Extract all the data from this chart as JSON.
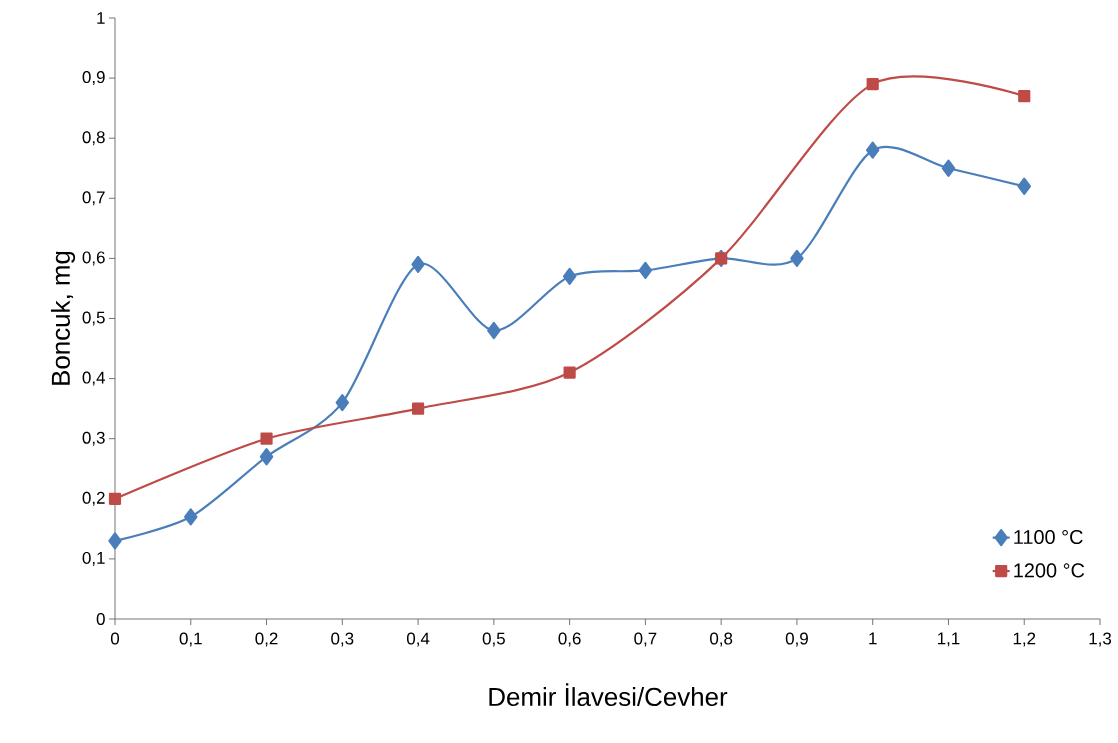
{
  "chart_data": {
    "type": "line",
    "xlabel": "Demir İlavesi/Cevher",
    "ylabel": "Boncuk, mg",
    "xlim": [
      0,
      1.3
    ],
    "ylim": [
      0,
      1
    ],
    "xticks": [
      0,
      {
        "value": 0.1,
        "label": "0,1"
      },
      {
        "value": 0.2,
        "label": "0,2"
      },
      {
        "value": 0.3,
        "label": "0,3"
      },
      {
        "value": 0.4,
        "label": "0,4"
      },
      {
        "value": 0.5,
        "label": "0,5"
      },
      {
        "value": 0.6,
        "label": "0,6"
      },
      {
        "value": 0.7,
        "label": "0,7"
      },
      {
        "value": 0.8,
        "label": "0,8"
      },
      {
        "value": 0.9,
        "label": "0,9"
      },
      1,
      {
        "value": 1.1,
        "label": "1,1"
      },
      {
        "value": 1.2,
        "label": "1,2"
      },
      {
        "value": 1.3,
        "label": "1,3"
      }
    ],
    "yticks": [
      0,
      {
        "value": 0.1,
        "label": "0,1"
      },
      {
        "value": 0.2,
        "label": "0,2"
      },
      {
        "value": 0.3,
        "label": "0,3"
      },
      {
        "value": 0.4,
        "label": "0,4"
      },
      {
        "value": 0.5,
        "label": "0,5"
      },
      {
        "value": 0.6,
        "label": "0,6"
      },
      {
        "value": 0.7,
        "label": "0,7"
      },
      {
        "value": 0.8,
        "label": "0,8"
      },
      {
        "value": 0.9,
        "label": "0,9"
      },
      1
    ],
    "grid": false,
    "legend": "bottom right",
    "line_style": "solid",
    "series": [
      {
        "name": "1100 °C",
        "color": "#4a7ebb",
        "marker": "diamond",
        "x": [
          0,
          0.1,
          0.2,
          0.3,
          0.4,
          0.5,
          0.6,
          0.7,
          0.8,
          0.9,
          1,
          1.1,
          1.2
        ],
        "values": [
          0.13,
          0.17,
          0.27,
          0.36,
          0.59,
          0.48,
          0.57,
          0.58,
          0.6,
          0.6,
          0.78,
          0.75,
          0.72
        ]
      },
      {
        "name": "1200 °C",
        "color": "#be4b48",
        "marker": "square",
        "x": [
          0,
          0.2,
          0.4,
          0.6,
          0.8,
          1,
          1.2
        ],
        "values": [
          0.2,
          0.3,
          0.35,
          0.41,
          0.6,
          0.89,
          0.87
        ]
      }
    ]
  }
}
